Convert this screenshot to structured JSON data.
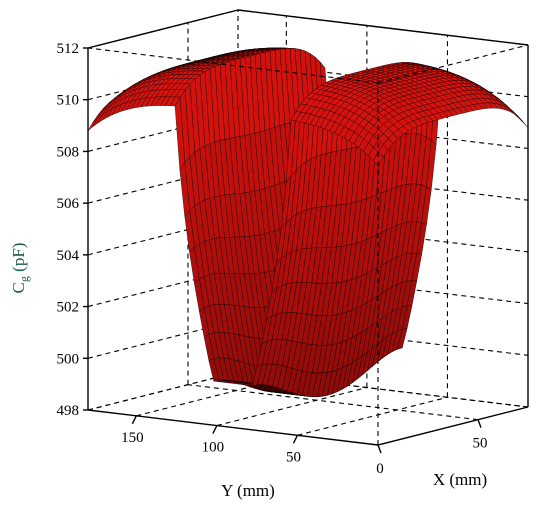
{
  "chart_data": {
    "type": "surface3d",
    "x_axis": {
      "label": "X (mm)",
      "ticks": [
        0,
        50
      ],
      "range": [
        0,
        75
      ]
    },
    "y_axis": {
      "label": "Y (mm)",
      "ticks": [
        150,
        100,
        50
      ],
      "range": [
        0,
        180
      ]
    },
    "z_axis": {
      "label_main": "C",
      "label_sub": "g",
      "label_unit": " (pF)",
      "ticks": [
        498,
        500,
        502,
        504,
        506,
        508,
        510,
        512
      ],
      "range": [
        498,
        512
      ]
    },
    "surface": {
      "base_level_pF": 511.4,
      "trough_bottom_pF": 498.6,
      "trough_center_y_mm": 90,
      "trough_half_width_mm": 35,
      "trough_bottom_x_mm": 37.5
    },
    "surface_color": "#e0130f",
    "mesh_color": "#000000"
  }
}
